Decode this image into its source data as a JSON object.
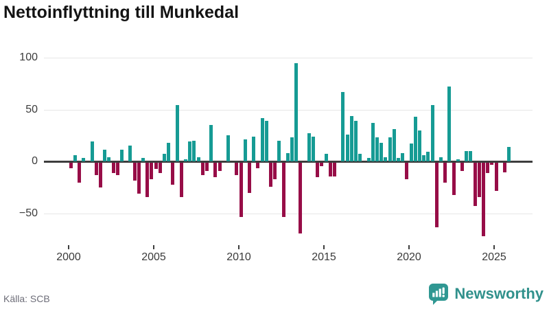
{
  "title": "Nettoinflyttning till Munkedal",
  "source": "Källa: SCB",
  "brand": {
    "name": "Newsworthy",
    "color": "#31918c"
  },
  "chart_data": {
    "type": "bar",
    "title": "Nettoinflyttning till Munkedal",
    "frequency": "quarterly",
    "start": "2000 Q1",
    "end": "2025 Q4",
    "values": [
      -5,
      6,
      -19,
      3,
      0,
      19,
      -12,
      -24,
      11,
      4,
      -10,
      -12,
      11,
      0,
      15,
      -17,
      -30,
      3,
      -33,
      -16,
      -6,
      -10,
      7,
      18,
      -21,
      54,
      -33,
      2,
      19,
      20,
      4,
      -12,
      -8,
      35,
      -14,
      -8,
      0,
      25,
      0,
      -12,
      -52,
      21,
      -29,
      24,
      -5,
      42,
      39,
      -23,
      -16,
      20,
      -52,
      8,
      23,
      95,
      -68,
      0,
      27,
      24,
      -14,
      -3,
      7,
      -13,
      -13,
      0,
      67,
      26,
      44,
      39,
      7,
      0,
      3,
      37,
      23,
      18,
      4,
      23,
      31,
      3,
      8,
      -16,
      17,
      43,
      30,
      6,
      9,
      54,
      -62,
      4,
      -19,
      72,
      -31,
      2,
      -8,
      10,
      10,
      -42,
      -33,
      -71,
      -10,
      -2,
      -27,
      0,
      -9,
      14
    ],
    "x_tick_labels": [
      "2000",
      "2005",
      "2010",
      "2015",
      "2020",
      "2025"
    ],
    "y_ticks": [
      100,
      50,
      0,
      -50
    ],
    "y_tick_labels": [
      "100",
      "50",
      "0",
      "−50"
    ],
    "ylim": [
      -75,
      105
    ],
    "grid": "horizontal",
    "legend": "none",
    "colors": {
      "positive": "#169b94",
      "negative": "#970d47"
    }
  }
}
